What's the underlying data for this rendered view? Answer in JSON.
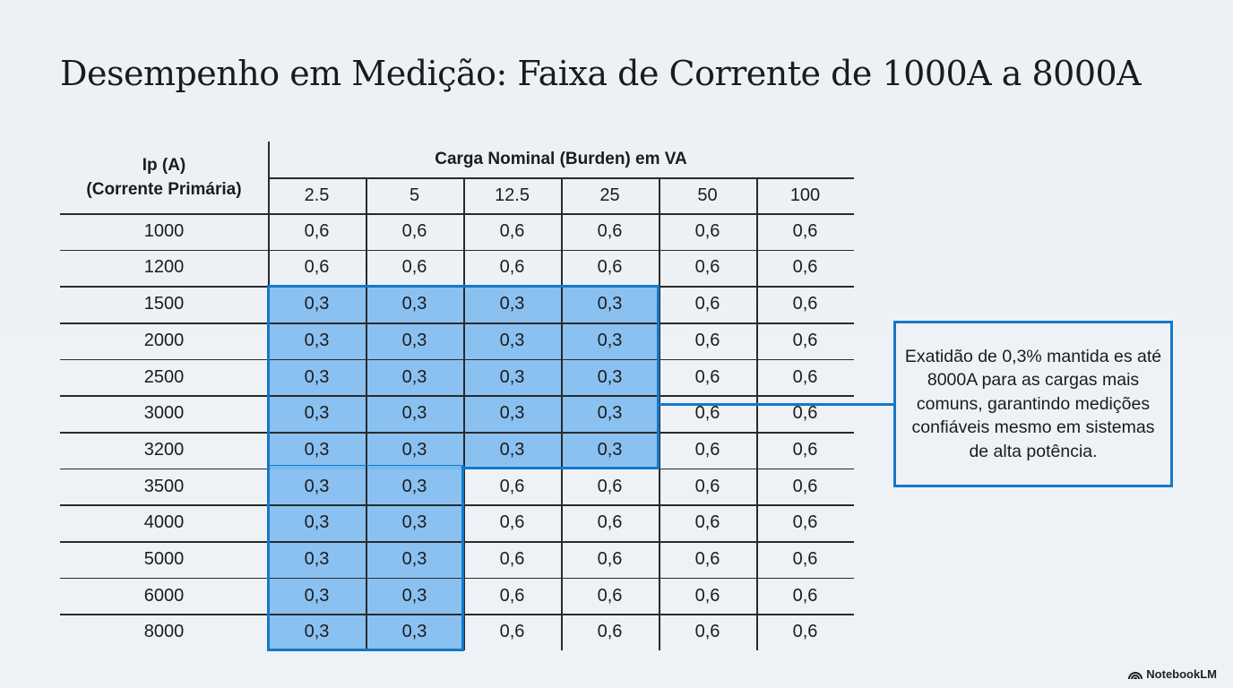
{
  "title": "Desempenho em Medição: Faixa de Corrente de 1000A a 8000A",
  "table": {
    "row_header_line1": "Ip (A)",
    "row_header_line2": "(Corrente Primária)",
    "group_header": "Carga Nominal (Burden) em VA",
    "columns": [
      "2.5",
      "5",
      "12.5",
      "25",
      "50",
      "100"
    ],
    "rows": [
      {
        "ip": "1000",
        "values": [
          "0,6",
          "0,6",
          "0,6",
          "0,6",
          "0,6",
          "0,6"
        ]
      },
      {
        "ip": "1200",
        "values": [
          "0,6",
          "0,6",
          "0,6",
          "0,6",
          "0,6",
          "0,6"
        ]
      },
      {
        "ip": "1500",
        "values": [
          "0,3",
          "0,3",
          "0,3",
          "0,3",
          "0,6",
          "0,6"
        ]
      },
      {
        "ip": "2000",
        "values": [
          "0,3",
          "0,3",
          "0,3",
          "0,3",
          "0,6",
          "0,6"
        ]
      },
      {
        "ip": "2500",
        "values": [
          "0,3",
          "0,3",
          "0,3",
          "0,3",
          "0,6",
          "0,6"
        ]
      },
      {
        "ip": "3000",
        "values": [
          "0,3",
          "0,3",
          "0,3",
          "0,3",
          "0,6",
          "0,6"
        ]
      },
      {
        "ip": "3200",
        "values": [
          "0,3",
          "0,3",
          "0,3",
          "0,3",
          "0,6",
          "0,6"
        ]
      },
      {
        "ip": "3500",
        "values": [
          "0,3",
          "0,3",
          "0,6",
          "0,6",
          "0,6",
          "0,6"
        ]
      },
      {
        "ip": "4000",
        "values": [
          "0,3",
          "0,3",
          "0,6",
          "0,6",
          "0,6",
          "0,6"
        ]
      },
      {
        "ip": "5000",
        "values": [
          "0,3",
          "0,3",
          "0,6",
          "0,6",
          "0,6",
          "0,6"
        ]
      },
      {
        "ip": "6000",
        "values": [
          "0,3",
          "0,3",
          "0,6",
          "0,6",
          "0,6",
          "0,6"
        ]
      },
      {
        "ip": "8000",
        "values": [
          "0,3",
          "0,3",
          "0,6",
          "0,6",
          "0,6",
          "0,6"
        ]
      }
    ]
  },
  "callout": {
    "text": "Exatidão de 0,3% mantida es até 8000A para as cargas mais comuns, garantindo medições confiáveis mesmo em sistemas de alta potência."
  },
  "colors": {
    "highlight_fill": "#7fbaf0",
    "highlight_border": "#1478c8",
    "background": "#edf1f5"
  },
  "brand": {
    "icon": "notebooklm-logo-icon",
    "label": "NotebookLM"
  }
}
